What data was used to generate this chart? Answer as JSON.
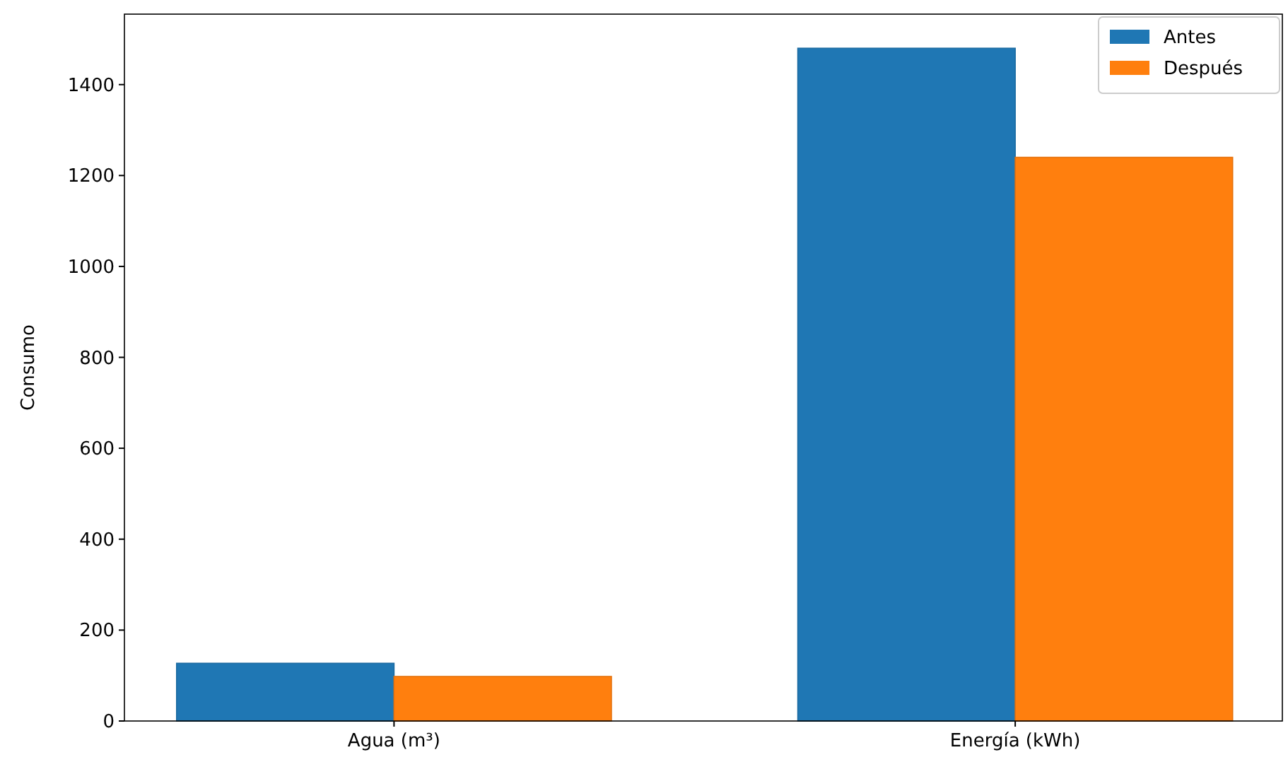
{
  "chart_data": {
    "type": "bar",
    "ylabel": "Consumo",
    "categories": [
      "Agua (m³)",
      "Energía (kWh)"
    ],
    "series": [
      {
        "name": "Antes",
        "color": "#1f77b4",
        "values": [
          127,
          1480
        ]
      },
      {
        "name": "Después",
        "color": "#ff7f0e",
        "values": [
          98,
          1240
        ]
      }
    ],
    "ylim": [
      0,
      1555
    ],
    "yticks": [
      0,
      200,
      400,
      600,
      800,
      1000,
      1200,
      1400
    ],
    "legend": "top right",
    "grid": false
  }
}
